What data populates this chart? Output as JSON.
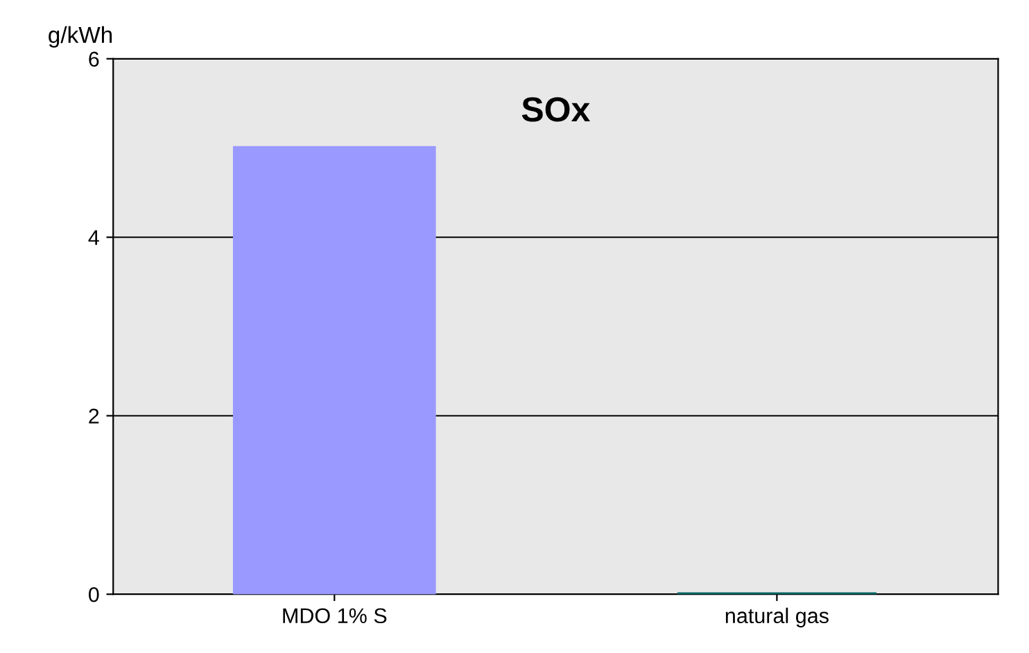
{
  "chart_data": {
    "type": "bar",
    "title": "SOx",
    "ylabel": "g/kWh",
    "categories": [
      "MDO 1% S",
      "natural gas"
    ],
    "values": [
      5.0,
      0
    ],
    "colors": [
      "#9999ff",
      "#006666"
    ],
    "ylim": [
      0,
      6
    ],
    "yticks": [
      0,
      2,
      4,
      6
    ],
    "grid": "y",
    "legend": false
  }
}
